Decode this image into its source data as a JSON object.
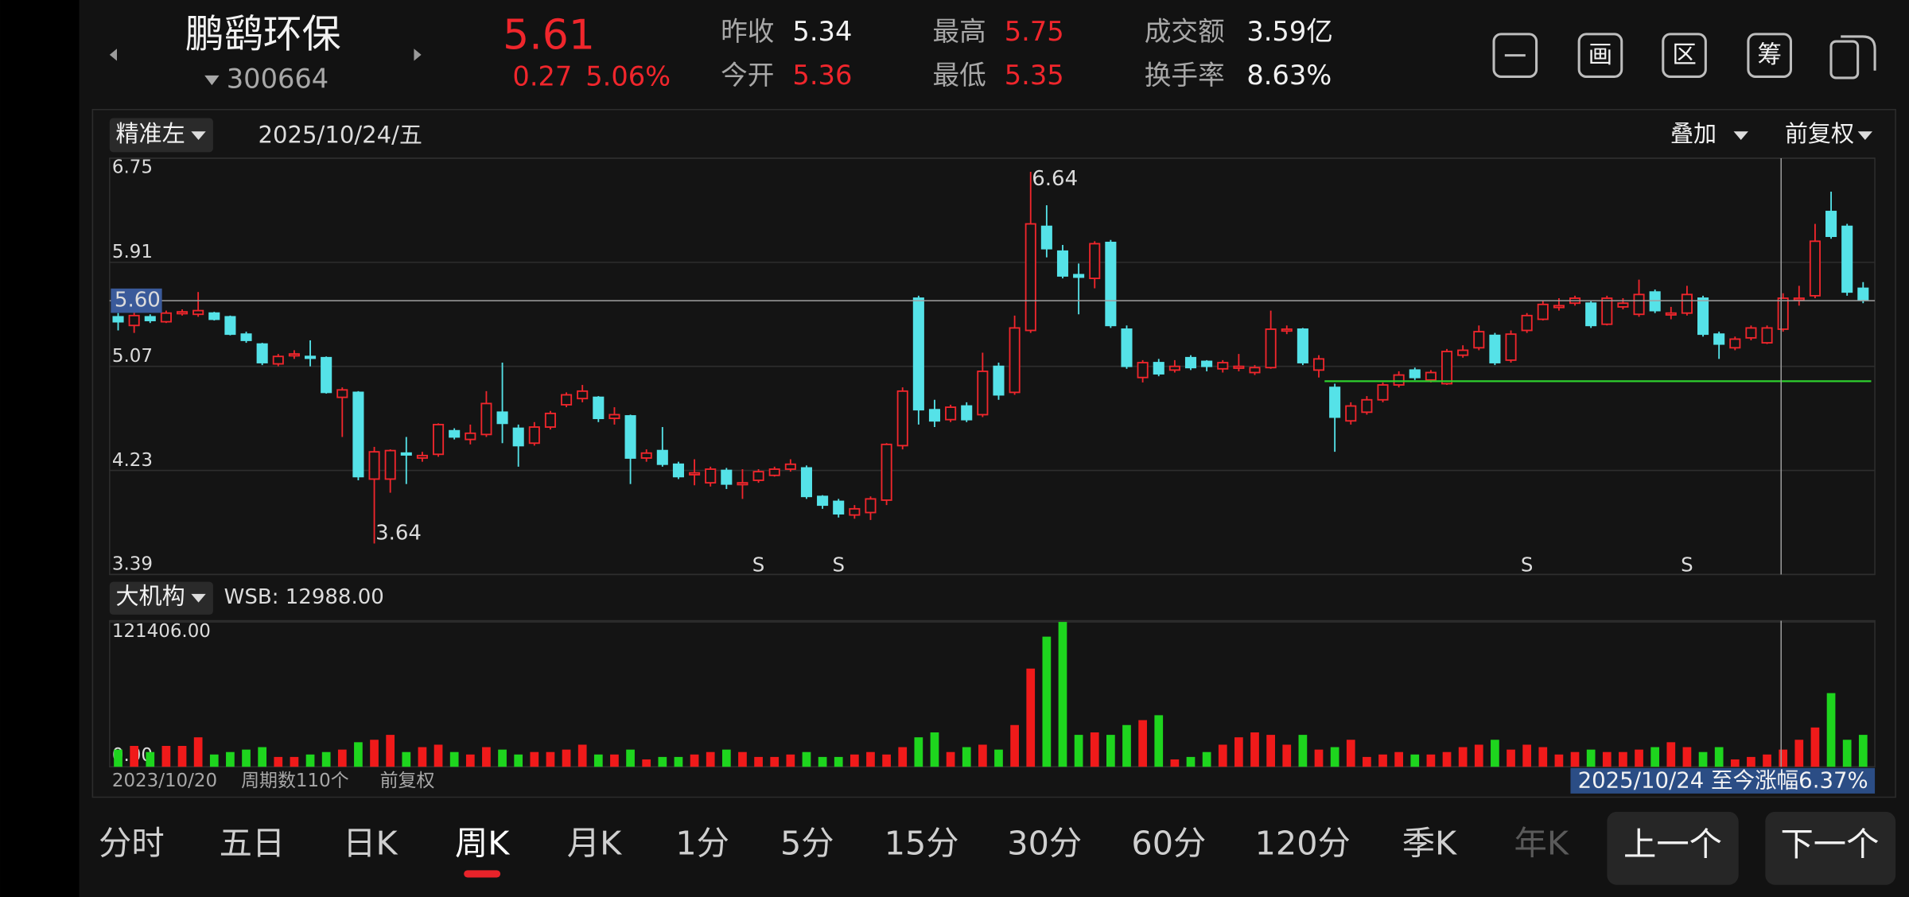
{
  "header": {
    "name": "鹏鹞环保",
    "code": "300664",
    "price": "5.61",
    "change": "0.27",
    "change_pct": "5.06%",
    "stats": [
      {
        "label": "昨收",
        "value": "5.34"
      },
      {
        "label": "今开",
        "value": "5.36"
      },
      {
        "label": "最高",
        "value": "5.75"
      },
      {
        "label": "最低",
        "value": "5.35"
      },
      {
        "label": "成交额",
        "value": "3.59亿"
      },
      {
        "label": "换手率",
        "value": "8.63%"
      }
    ],
    "tools": [
      "画",
      "区",
      "筹"
    ]
  },
  "toolbar": {
    "mode": "精准左",
    "date": "2025/10/24/五",
    "overlay": "叠加",
    "adjust": "前复权"
  },
  "chart_data": {
    "type": "candlestick",
    "ylim": [
      3.39,
      6.75
    ],
    "yticks": [
      6.75,
      5.91,
      5.07,
      4.23,
      3.39
    ],
    "open": [
      5.47,
      5.4,
      5.47,
      5.43,
      5.5,
      5.49,
      5.5,
      5.47,
      5.33,
      5.25,
      5.09,
      5.16,
      5.15,
      5.14,
      4.82,
      4.86,
      4.16,
      4.16,
      4.37,
      4.33,
      4.36,
      4.55,
      4.48,
      4.52,
      4.7,
      4.57,
      4.45,
      4.58,
      4.76,
      4.81,
      4.82,
      4.65,
      4.67,
      4.33,
      4.39,
      4.28,
      4.2,
      4.13,
      4.23,
      4.12,
      4.15,
      4.19,
      4.24,
      4.25,
      4.02,
      3.98,
      3.87,
      3.89,
      3.99,
      4.43,
      5.62,
      4.72,
      4.64,
      4.75,
      4.68,
      5.07,
      4.86,
      5.36,
      6.2,
      6.0,
      5.81,
      5.78,
      6.07,
      5.37,
      4.98,
      5.1,
      5.04,
      5.14,
      5.11,
      5.05,
      5.06,
      5.02,
      5.06,
      5.36,
      5.37,
      5.04,
      4.9,
      4.63,
      4.7,
      4.8,
      4.92,
      5.04,
      4.96,
      4.93,
      5.16,
      5.22,
      5.32,
      5.12,
      5.36,
      5.45,
      5.55,
      5.58,
      5.58,
      5.41,
      5.55,
      5.49,
      5.67,
      5.49,
      5.5,
      5.62,
      5.33,
      5.22,
      5.3,
      5.26,
      5.37,
      5.61,
      5.64,
      6.32,
      6.2,
      5.7
    ],
    "high": [
      5.5,
      5.52,
      5.49,
      5.52,
      5.53,
      5.67,
      5.51,
      5.48,
      5.35,
      5.26,
      5.17,
      5.2,
      5.28,
      5.15,
      4.9,
      4.87,
      4.42,
      4.4,
      4.5,
      4.38,
      4.61,
      4.57,
      4.6,
      4.87,
      5.1,
      4.6,
      4.62,
      4.71,
      4.86,
      4.92,
      4.83,
      4.74,
      4.68,
      4.4,
      4.58,
      4.3,
      4.32,
      4.26,
      4.25,
      4.24,
      4.24,
      4.26,
      4.32,
      4.27,
      4.03,
      4.0,
      3.95,
      4.02,
      4.45,
      4.9,
      5.64,
      4.8,
      4.76,
      4.78,
      5.18,
      5.1,
      5.48,
      6.64,
      6.37,
      6.05,
      5.9,
      6.08,
      6.09,
      5.4,
      5.12,
      5.13,
      5.12,
      5.16,
      5.12,
      5.12,
      5.17,
      5.08,
      5.52,
      5.4,
      5.38,
      5.16,
      4.93,
      4.78,
      4.83,
      4.94,
      5.03,
      5.06,
      5.04,
      5.21,
      5.24,
      5.4,
      5.34,
      5.36,
      5.5,
      5.6,
      5.62,
      5.64,
      5.6,
      5.64,
      5.62,
      5.77,
      5.69,
      5.55,
      5.72,
      5.64,
      5.35,
      5.31,
      5.4,
      5.4,
      5.66,
      5.72,
      6.22,
      6.48,
      6.22,
      5.75
    ],
    "low": [
      5.36,
      5.34,
      5.42,
      5.42,
      5.48,
      5.47,
      5.44,
      5.32,
      5.26,
      5.08,
      5.07,
      5.13,
      5.07,
      4.85,
      4.5,
      4.15,
      3.64,
      4.05,
      4.12,
      4.3,
      4.34,
      4.48,
      4.44,
      4.5,
      4.45,
      4.26,
      4.43,
      4.56,
      4.74,
      4.78,
      4.62,
      4.6,
      4.12,
      4.3,
      4.26,
      4.16,
      4.11,
      4.1,
      4.08,
      4.0,
      4.13,
      4.18,
      4.22,
      4.0,
      3.92,
      3.85,
      3.84,
      3.83,
      3.95,
      4.4,
      4.6,
      4.58,
      4.62,
      4.62,
      4.66,
      4.8,
      4.84,
      5.34,
      5.95,
      5.78,
      5.49,
      5.7,
      5.38,
      5.05,
      4.94,
      4.99,
      5.02,
      5.04,
      5.03,
      5.02,
      5.03,
      5.0,
      5.05,
      5.33,
      5.08,
      4.98,
      4.38,
      4.6,
      4.68,
      4.78,
      4.9,
      4.96,
      4.94,
      4.92,
      5.14,
      5.2,
      5.08,
      5.1,
      5.34,
      5.44,
      5.52,
      5.56,
      5.38,
      5.4,
      5.53,
      5.47,
      5.5,
      5.45,
      5.48,
      5.31,
      5.13,
      5.2,
      5.28,
      5.25,
      5.35,
      5.56,
      5.62,
      6.1,
      5.64,
      5.58
    ],
    "close": [
      5.43,
      5.48,
      5.44,
      5.5,
      5.51,
      5.52,
      5.45,
      5.33,
      5.28,
      5.1,
      5.15,
      5.17,
      5.14,
      4.86,
      4.88,
      4.18,
      4.38,
      4.39,
      4.36,
      4.35,
      4.6,
      4.5,
      4.53,
      4.77,
      4.61,
      4.43,
      4.58,
      4.69,
      4.84,
      4.87,
      4.65,
      4.68,
      4.33,
      4.37,
      4.28,
      4.18,
      4.21,
      4.24,
      4.12,
      4.13,
      4.22,
      4.24,
      4.28,
      4.02,
      3.95,
      3.88,
      3.92,
      4.0,
      4.44,
      4.87,
      4.72,
      4.63,
      4.74,
      4.64,
      5.03,
      4.84,
      5.38,
      6.22,
      6.02,
      5.8,
      5.79,
      6.06,
      5.4,
      5.07,
      5.1,
      5.01,
      5.07,
      5.06,
      5.07,
      5.1,
      5.07,
      5.06,
      5.37,
      5.37,
      5.1,
      5.13,
      4.66,
      4.75,
      4.8,
      4.92,
      5.0,
      4.98,
      5.02,
      5.19,
      5.2,
      5.35,
      5.1,
      5.33,
      5.48,
      5.57,
      5.56,
      5.62,
      5.4,
      5.62,
      5.58,
      5.65,
      5.52,
      5.5,
      5.65,
      5.33,
      5.25,
      5.29,
      5.38,
      5.38,
      5.62,
      5.62,
      6.08,
      6.12,
      5.67,
      5.61
    ],
    "volume": [
      14406,
      17493,
      12348,
      17493,
      17493,
      24696,
      10290,
      12348,
      14406,
      16464,
      8232,
      8232,
      10290,
      12348,
      14406,
      20580,
      22638,
      26754,
      12348,
      16464,
      18522,
      12348,
      10290,
      16464,
      14406,
      10290,
      12348,
      12348,
      14406,
      18522,
      10290,
      10290,
      14406,
      6174,
      8232,
      8232,
      10290,
      12348,
      14406,
      12348,
      8232,
      8232,
      10290,
      12348,
      8232,
      8232,
      10290,
      12348,
      10290,
      16464,
      24696,
      28812,
      12348,
      16464,
      18522,
      14406,
      34986,
      82320,
      109074,
      121406,
      26754,
      28812,
      26754,
      34986,
      39102,
      43218,
      6174,
      8232,
      12348,
      18522,
      24696,
      28812,
      26754,
      18522,
      26754,
      14406,
      16464,
      22638,
      8232,
      10290,
      12348,
      10290,
      10290,
      12348,
      16464,
      18522,
      22638,
      14406,
      18522,
      16464,
      10290,
      12348,
      14406,
      12348,
      12348,
      14406,
      16464,
      20580,
      16464,
      12348,
      16464,
      6174,
      8232,
      10290,
      14406,
      22638,
      32928,
      61740,
      22638,
      26754
    ],
    "vlim": [
      0,
      121406
    ],
    "vticks": [
      {
        "value": 121406,
        "label": "121406.00"
      },
      {
        "value": 0,
        "label": "0.00"
      }
    ],
    "crosshair_price": {
      "value": 5.6,
      "label": "5.60"
    },
    "support_line": 4.95,
    "sell_signals": {
      "label": "S",
      "indices": [
        40,
        45,
        88,
        98
      ]
    },
    "up_color": "#f0262c",
    "down_color": "#55e2e8",
    "volume_up_color": "#f01a1a",
    "volume_down_color": "#1ed51e",
    "support_color": "#2ed12e"
  },
  "volume_panel": {
    "indicator": "大机构",
    "wsb": "WSB: 12988.00"
  },
  "footer": {
    "start_date": "2023/10/20",
    "periods": "周期数110个",
    "adjust": "前复权",
    "range_summary": "2025/10/24 至今涨幅6.37%"
  },
  "tabs": [
    "分时",
    "五日",
    "日K",
    "周K",
    "月K",
    "1分",
    "5分",
    "15分",
    "30分",
    "60分",
    "120分",
    "季K",
    "年K"
  ],
  "active_tab": 3,
  "nav_buttons": [
    "上一个",
    "下一个"
  ]
}
